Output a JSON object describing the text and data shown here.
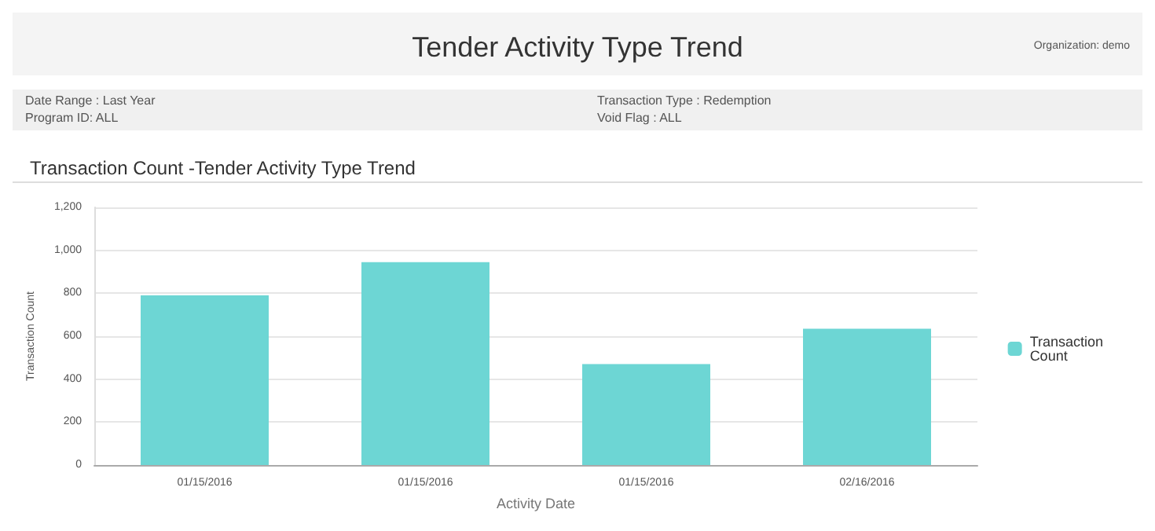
{
  "chart_data": {
    "type": "bar",
    "title": "Tender Activity Type Trend",
    "subtitle": "Transaction Count -Tender Activity Type Trend",
    "annotations": [
      "Organization: demo",
      "Date Range : Last Year",
      "Program ID: ALL",
      "Transaction Type : Redemption",
      "Void Flag : ALL"
    ],
    "xlabel": "Activity Date",
    "ylabel": "Transaction Count",
    "categories": [
      "01/15/2016",
      "01/15/2016",
      "01/15/2016",
      "02/16/2016"
    ],
    "series": [
      {
        "name": "Transaction Count",
        "color": "#6dd6d4",
        "values": [
          790,
          945,
          470,
          635
        ]
      }
    ],
    "ylim": [
      0,
      1200
    ],
    "yticks": [
      0,
      200,
      400,
      600,
      800,
      {
        "value": 1000,
        "label": "1,000"
      },
      {
        "value": 1200,
        "label": "1,200"
      }
    ],
    "grid": "y",
    "legend": "right"
  }
}
